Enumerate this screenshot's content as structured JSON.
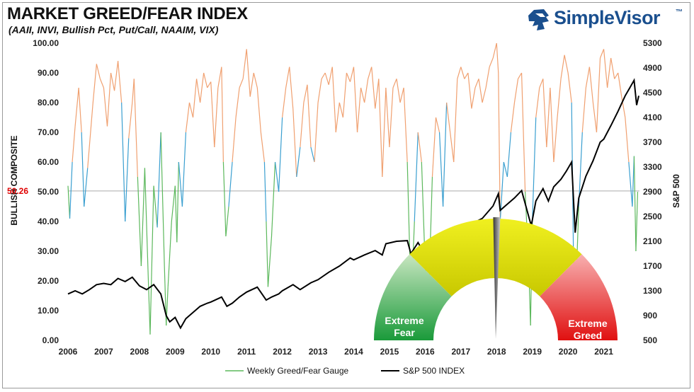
{
  "header": {
    "title": "MARKET GREED/FEAR INDEX",
    "subtitle": "(AAII, INVI, Bullish Pct, Put/Call, NAAIM, VIX)"
  },
  "logo": {
    "text": "SimpleVisor",
    "tm": "™",
    "icon": "lion-head-icon",
    "color": "#1a4f8e"
  },
  "chart_data": {
    "type": "line",
    "title": "MARKET GREED/FEAR INDEX",
    "ylabel": "BULLISH COMPOSITE",
    "y2label": "S&P 500",
    "ylim": [
      0,
      100
    ],
    "y2lim": [
      500,
      5300
    ],
    "xlim": [
      2006,
      2022
    ],
    "x_ticks": [
      "2006",
      "2007",
      "2008",
      "2009",
      "2010",
      "2011",
      "2012",
      "2013",
      "2014",
      "2015",
      "2016",
      "2017",
      "2018",
      "2019",
      "2020",
      "2021"
    ],
    "y_ticks": [
      "100.00",
      "90.00",
      "80.00",
      "70.00",
      "60.00",
      "50.00",
      "40.00",
      "30.00",
      "20.00",
      "10.00",
      "0.00"
    ],
    "y2_ticks": [
      "5300",
      "4900",
      "4500",
      "4100",
      "3700",
      "3300",
      "2900",
      "2500",
      "2100",
      "1700",
      "1300",
      "900",
      "500"
    ],
    "reference_line": {
      "value": 50.26,
      "label": "50.26",
      "color": "#e00000"
    },
    "grid": false,
    "legend_position": "bottom",
    "series": [
      {
        "name": "Weekly Greed/Fear Gauge",
        "axis": "left",
        "color_low": "#5cb85c",
        "color_mid": "#3a9fd0",
        "color_high": "#f0a070",
        "points": [
          [
            2006.0,
            52
          ],
          [
            2006.05,
            41
          ],
          [
            2006.12,
            60
          ],
          [
            2006.2,
            72
          ],
          [
            2006.3,
            85
          ],
          [
            2006.38,
            70
          ],
          [
            2006.45,
            45
          ],
          [
            2006.55,
            58
          ],
          [
            2006.7,
            80
          ],
          [
            2006.8,
            93
          ],
          [
            2006.9,
            88
          ],
          [
            2007.0,
            85
          ],
          [
            2007.1,
            72
          ],
          [
            2007.2,
            90
          ],
          [
            2007.3,
            84
          ],
          [
            2007.4,
            94
          ],
          [
            2007.5,
            80
          ],
          [
            2007.6,
            40
          ],
          [
            2007.7,
            68
          ],
          [
            2007.8,
            80
          ],
          [
            2007.85,
            88
          ],
          [
            2007.95,
            55
          ],
          [
            2008.0,
            40
          ],
          [
            2008.05,
            25
          ],
          [
            2008.15,
            58
          ],
          [
            2008.25,
            20
          ],
          [
            2008.3,
            2
          ],
          [
            2008.4,
            52
          ],
          [
            2008.5,
            38
          ],
          [
            2008.6,
            70
          ],
          [
            2008.7,
            25
          ],
          [
            2008.75,
            5
          ],
          [
            2008.8,
            18
          ],
          [
            2008.9,
            40
          ],
          [
            2009.0,
            52
          ],
          [
            2009.05,
            33
          ],
          [
            2009.1,
            60
          ],
          [
            2009.2,
            45
          ],
          [
            2009.3,
            70
          ],
          [
            2009.4,
            80
          ],
          [
            2009.5,
            75
          ],
          [
            2009.6,
            88
          ],
          [
            2009.7,
            80
          ],
          [
            2009.8,
            90
          ],
          [
            2009.9,
            85
          ],
          [
            2010.0,
            87
          ],
          [
            2010.1,
            65
          ],
          [
            2010.2,
            85
          ],
          [
            2010.3,
            92
          ],
          [
            2010.35,
            60
          ],
          [
            2010.42,
            35
          ],
          [
            2010.5,
            45
          ],
          [
            2010.6,
            60
          ],
          [
            2010.7,
            75
          ],
          [
            2010.8,
            85
          ],
          [
            2010.9,
            88
          ],
          [
            2011.0,
            98
          ],
          [
            2011.1,
            82
          ],
          [
            2011.2,
            90
          ],
          [
            2011.3,
            85
          ],
          [
            2011.4,
            70
          ],
          [
            2011.5,
            60
          ],
          [
            2011.55,
            40
          ],
          [
            2011.6,
            18
          ],
          [
            2011.7,
            35
          ],
          [
            2011.8,
            60
          ],
          [
            2011.9,
            50
          ],
          [
            2012.0,
            75
          ],
          [
            2012.1,
            85
          ],
          [
            2012.2,
            92
          ],
          [
            2012.3,
            78
          ],
          [
            2012.4,
            55
          ],
          [
            2012.5,
            65
          ],
          [
            2012.6,
            80
          ],
          [
            2012.7,
            86
          ],
          [
            2012.8,
            65
          ],
          [
            2012.9,
            60
          ],
          [
            2013.0,
            80
          ],
          [
            2013.1,
            88
          ],
          [
            2013.2,
            90
          ],
          [
            2013.3,
            86
          ],
          [
            2013.4,
            92
          ],
          [
            2013.5,
            70
          ],
          [
            2013.6,
            80
          ],
          [
            2013.7,
            75
          ],
          [
            2013.8,
            90
          ],
          [
            2013.9,
            87
          ],
          [
            2014.0,
            92
          ],
          [
            2014.1,
            70
          ],
          [
            2014.2,
            85
          ],
          [
            2014.3,
            80
          ],
          [
            2014.4,
            88
          ],
          [
            2014.5,
            92
          ],
          [
            2014.6,
            78
          ],
          [
            2014.7,
            88
          ],
          [
            2014.8,
            55
          ],
          [
            2014.9,
            85
          ],
          [
            2015.0,
            65
          ],
          [
            2015.1,
            85
          ],
          [
            2015.2,
            88
          ],
          [
            2015.3,
            80
          ],
          [
            2015.4,
            85
          ],
          [
            2015.5,
            60
          ],
          [
            2015.6,
            15
          ],
          [
            2015.65,
            25
          ],
          [
            2015.7,
            40
          ],
          [
            2015.8,
            70
          ],
          [
            2015.9,
            60
          ],
          [
            2016.0,
            25
          ],
          [
            2016.1,
            15
          ],
          [
            2016.2,
            55
          ],
          [
            2016.3,
            75
          ],
          [
            2016.4,
            70
          ],
          [
            2016.5,
            45
          ],
          [
            2016.6,
            80
          ],
          [
            2016.7,
            70
          ],
          [
            2016.8,
            60
          ],
          [
            2016.9,
            88
          ],
          [
            2017.0,
            92
          ],
          [
            2017.1,
            88
          ],
          [
            2017.2,
            90
          ],
          [
            2017.3,
            78
          ],
          [
            2017.4,
            85
          ],
          [
            2017.5,
            88
          ],
          [
            2017.6,
            80
          ],
          [
            2017.7,
            85
          ],
          [
            2017.8,
            92
          ],
          [
            2017.9,
            95
          ],
          [
            2018.0,
            100
          ],
          [
            2018.05,
            90
          ],
          [
            2018.1,
            40
          ],
          [
            2018.2,
            60
          ],
          [
            2018.3,
            55
          ],
          [
            2018.4,
            70
          ],
          [
            2018.5,
            80
          ],
          [
            2018.6,
            88
          ],
          [
            2018.7,
            90
          ],
          [
            2018.8,
            50
          ],
          [
            2018.9,
            25
          ],
          [
            2018.95,
            5
          ],
          [
            2019.0,
            40
          ],
          [
            2019.1,
            75
          ],
          [
            2019.2,
            85
          ],
          [
            2019.3,
            88
          ],
          [
            2019.4,
            65
          ],
          [
            2019.5,
            85
          ],
          [
            2019.6,
            60
          ],
          [
            2019.7,
            75
          ],
          [
            2019.8,
            88
          ],
          [
            2019.9,
            96
          ],
          [
            2020.0,
            90
          ],
          [
            2020.1,
            80
          ],
          [
            2020.15,
            30
          ],
          [
            2020.2,
            10
          ],
          [
            2020.3,
            45
          ],
          [
            2020.4,
            70
          ],
          [
            2020.5,
            85
          ],
          [
            2020.6,
            92
          ],
          [
            2020.7,
            80
          ],
          [
            2020.8,
            70
          ],
          [
            2020.9,
            95
          ],
          [
            2021.0,
            98
          ],
          [
            2021.1,
            85
          ],
          [
            2021.2,
            95
          ],
          [
            2021.3,
            88
          ],
          [
            2021.4,
            90
          ],
          [
            2021.5,
            82
          ],
          [
            2021.6,
            75
          ],
          [
            2021.7,
            60
          ],
          [
            2021.8,
            45
          ],
          [
            2021.85,
            62
          ],
          [
            2021.9,
            30
          ],
          [
            2021.95,
            50
          ]
        ]
      },
      {
        "name": "S&P 500 INDEX",
        "axis": "right",
        "color": "#000000",
        "points": [
          [
            2006.0,
            1250
          ],
          [
            2006.2,
            1300
          ],
          [
            2006.4,
            1250
          ],
          [
            2006.6,
            1320
          ],
          [
            2006.8,
            1400
          ],
          [
            2007.0,
            1420
          ],
          [
            2007.2,
            1400
          ],
          [
            2007.4,
            1500
          ],
          [
            2007.6,
            1450
          ],
          [
            2007.8,
            1520
          ],
          [
            2008.0,
            1380
          ],
          [
            2008.2,
            1320
          ],
          [
            2008.4,
            1400
          ],
          [
            2008.6,
            1250
          ],
          [
            2008.75,
            900
          ],
          [
            2008.85,
            800
          ],
          [
            2009.0,
            870
          ],
          [
            2009.15,
            700
          ],
          [
            2009.3,
            850
          ],
          [
            2009.5,
            950
          ],
          [
            2009.7,
            1050
          ],
          [
            2009.9,
            1100
          ],
          [
            2010.0,
            1120
          ],
          [
            2010.3,
            1200
          ],
          [
            2010.45,
            1050
          ],
          [
            2010.6,
            1100
          ],
          [
            2010.8,
            1200
          ],
          [
            2011.0,
            1280
          ],
          [
            2011.3,
            1360
          ],
          [
            2011.55,
            1150
          ],
          [
            2011.7,
            1200
          ],
          [
            2011.9,
            1250
          ],
          [
            2012.0,
            1300
          ],
          [
            2012.3,
            1400
          ],
          [
            2012.5,
            1320
          ],
          [
            2012.8,
            1430
          ],
          [
            2013.0,
            1480
          ],
          [
            2013.3,
            1600
          ],
          [
            2013.6,
            1700
          ],
          [
            2013.9,
            1830
          ],
          [
            2014.0,
            1800
          ],
          [
            2014.3,
            1880
          ],
          [
            2014.6,
            1950
          ],
          [
            2014.8,
            1880
          ],
          [
            2014.9,
            2060
          ],
          [
            2015.2,
            2100
          ],
          [
            2015.5,
            2110
          ],
          [
            2015.6,
            1900
          ],
          [
            2015.8,
            2080
          ],
          [
            2016.0,
            1880
          ],
          [
            2016.1,
            1850
          ],
          [
            2016.3,
            2080
          ],
          [
            2016.6,
            2180
          ],
          [
            2016.9,
            2260
          ],
          [
            2017.0,
            2280
          ],
          [
            2017.3,
            2380
          ],
          [
            2017.6,
            2470
          ],
          [
            2017.9,
            2670
          ],
          [
            2018.05,
            2870
          ],
          [
            2018.1,
            2600
          ],
          [
            2018.3,
            2700
          ],
          [
            2018.5,
            2800
          ],
          [
            2018.7,
            2920
          ],
          [
            2018.9,
            2500
          ],
          [
            2018.97,
            2350
          ],
          [
            2019.1,
            2750
          ],
          [
            2019.3,
            2950
          ],
          [
            2019.45,
            2750
          ],
          [
            2019.6,
            2980
          ],
          [
            2019.8,
            3100
          ],
          [
            2019.95,
            3230
          ],
          [
            2020.1,
            3380
          ],
          [
            2020.2,
            2240
          ],
          [
            2020.3,
            2800
          ],
          [
            2020.5,
            3150
          ],
          [
            2020.7,
            3400
          ],
          [
            2020.9,
            3700
          ],
          [
            2021.0,
            3750
          ],
          [
            2021.2,
            3970
          ],
          [
            2021.4,
            4200
          ],
          [
            2021.6,
            4450
          ],
          [
            2021.75,
            4600
          ],
          [
            2021.85,
            4700
          ],
          [
            2021.92,
            4300
          ],
          [
            2021.98,
            4450
          ]
        ]
      }
    ],
    "gauge": {
      "segments": [
        "Extreme Fear",
        "",
        "",
        "Extreme Greed"
      ],
      "needle_value": 50.26
    }
  },
  "legend": {
    "items": [
      {
        "label": "Weekly Greed/Fear Gauge",
        "color": "#5cb85c"
      },
      {
        "label": "S&P 500 INDEX",
        "color": "#000000"
      }
    ]
  }
}
